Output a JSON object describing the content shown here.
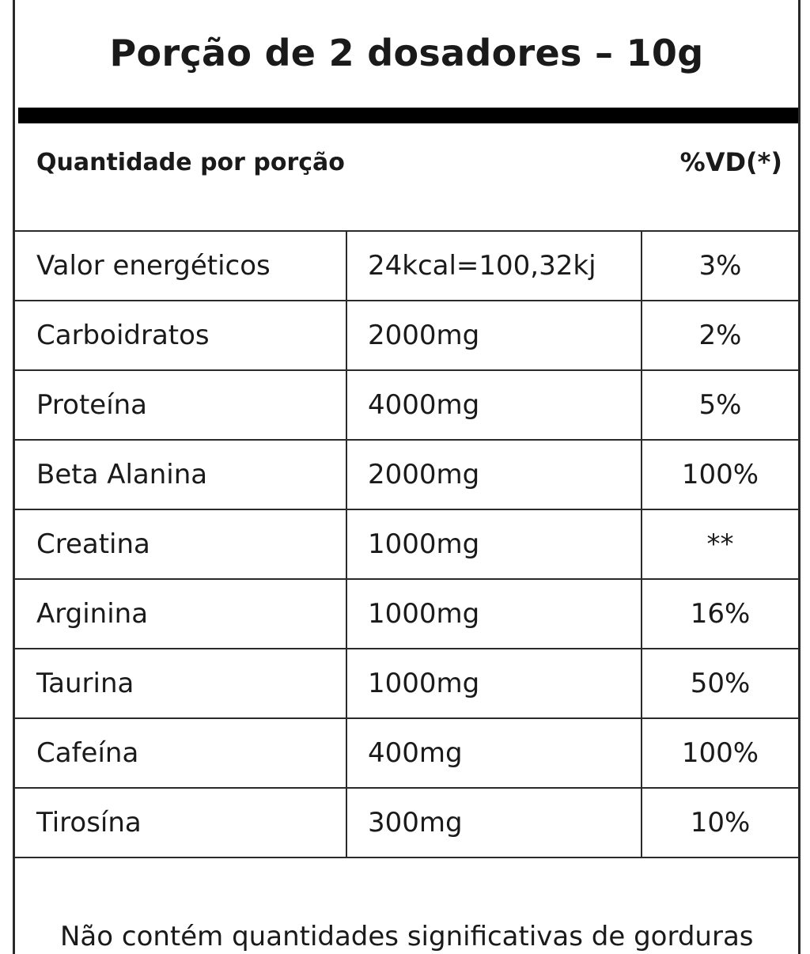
{
  "title": "Porção de 2 dosadores – 10g",
  "subheader": {
    "left": "Quantidade por porção",
    "right": "%VD(*)"
  },
  "rows": [
    {
      "name": "Valor energéticos",
      "amount": "24kcal=100,32kj",
      "vd": "3%"
    },
    {
      "name": "Carboidratos",
      "amount": "2000mg",
      "vd": "2%"
    },
    {
      "name": "Proteína",
      "amount": "4000mg",
      "vd": "5%"
    },
    {
      "name": "Beta Alanina",
      "amount": "2000mg",
      "vd": "100%"
    },
    {
      "name": "Creatina",
      "amount": "1000mg",
      "vd": "**"
    },
    {
      "name": "Arginina",
      "amount": "1000mg",
      "vd": "16%"
    },
    {
      "name": "Taurina",
      "amount": "1000mg",
      "vd": "50%"
    },
    {
      "name": "Cafeína",
      "amount": "400mg",
      "vd": "100%"
    },
    {
      "name": "Tirosína",
      "amount": "300mg",
      "vd": "10%"
    }
  ],
  "footnote": "Não contém quantidades significativas de gorduras"
}
